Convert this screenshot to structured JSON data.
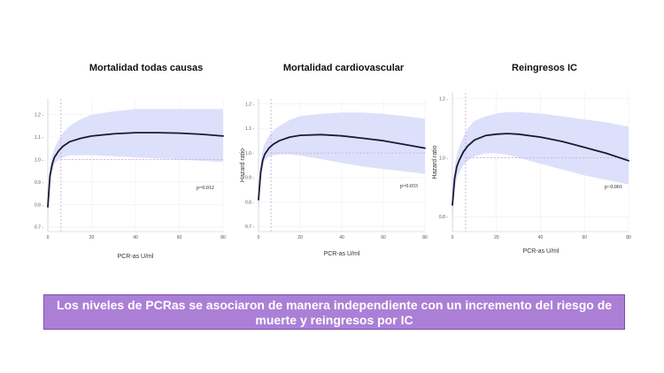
{
  "banner_text": "Los niveles de PCRas se asociaron de manera independiente con un incremento del riesgo de muerte y reingresos por IC",
  "colors": {
    "band": "#dde0fb",
    "curve": "#1a1a33",
    "reference": "#c9a3d4",
    "banner": "#ab7fd6"
  },
  "chart_data": [
    {
      "type": "line",
      "title": "Mortalidad todas causas",
      "xlabel": "PCR-as U/ml",
      "ylabel": "",
      "annotation": "p=0.012",
      "xlim": [
        0,
        80
      ],
      "ylim": [
        0.68,
        1.27
      ],
      "xticks": [
        0,
        20,
        40,
        60,
        80
      ],
      "yticks": [
        0.7,
        0.8,
        0.9,
        1.0,
        1.1,
        1.2
      ],
      "ytick_labels": [
        "0.7",
        "0.8",
        "0.9",
        "1.0",
        "1.1",
        "1.2"
      ],
      "reference_x": 6,
      "reference_y": 1.0,
      "x": [
        0,
        1,
        2,
        3,
        5,
        7,
        10,
        15,
        20,
        30,
        40,
        50,
        60,
        70,
        80
      ],
      "series": [
        {
          "values": [
            0.79,
            0.93,
            0.98,
            1.01,
            1.04,
            1.06,
            1.08,
            1.095,
            1.105,
            1.115,
            1.12,
            1.12,
            1.118,
            1.113,
            1.105
          ]
        }
      ],
      "band_lower": [
        0.72,
        0.9,
        0.95,
        0.98,
        1.0,
        1.01,
        1.02,
        1.02,
        1.02,
        1.015,
        1.01,
        1.005,
        1.0,
        0.995,
        0.99
      ],
      "band_upper": [
        0.86,
        0.97,
        1.02,
        1.05,
        1.09,
        1.12,
        1.15,
        1.18,
        1.2,
        1.215,
        1.225,
        1.225,
        1.225,
        1.225,
        1.225
      ]
    },
    {
      "type": "line",
      "title": "Mortalidad cardiovascular",
      "xlabel": "PCR-as U/ml",
      "ylabel": "Hazard ratio",
      "annotation": "p=0.033",
      "xlim": [
        0,
        80
      ],
      "ylim": [
        0.68,
        1.22
      ],
      "xticks": [
        0,
        20,
        40,
        60,
        80
      ],
      "yticks": [
        0.7,
        0.8,
        0.9,
        1.0,
        1.1,
        1.2
      ],
      "ytick_labels": [
        "0.7",
        "0.8",
        "0.9",
        "1.0",
        "1.1",
        "1.2"
      ],
      "reference_x": 6,
      "reference_y": 1.0,
      "x": [
        0,
        1,
        2,
        3,
        5,
        7,
        10,
        15,
        20,
        30,
        40,
        50,
        60,
        70,
        80
      ],
      "series": [
        {
          "values": [
            0.81,
            0.92,
            0.97,
            0.995,
            1.02,
            1.035,
            1.05,
            1.065,
            1.072,
            1.075,
            1.07,
            1.06,
            1.05,
            1.035,
            1.02
          ]
        }
      ],
      "band_lower": [
        0.75,
        0.89,
        0.94,
        0.97,
        0.985,
        0.99,
        0.995,
        0.995,
        0.99,
        0.975,
        0.96,
        0.945,
        0.935,
        0.925,
        0.915
      ],
      "band_upper": [
        0.87,
        0.96,
        1.01,
        1.04,
        1.07,
        1.09,
        1.11,
        1.135,
        1.15,
        1.16,
        1.165,
        1.165,
        1.16,
        1.15,
        1.14
      ]
    },
    {
      "type": "line",
      "title": "Reingresos IC",
      "xlabel": "PCR-as U/ml",
      "ylabel": "Hazard ratio",
      "annotation": "p<0.001",
      "xlim": [
        0,
        80
      ],
      "ylim": [
        0.75,
        1.22
      ],
      "xticks": [
        0,
        20,
        40,
        60,
        80
      ],
      "yticks": [
        0.8,
        1.0,
        1.2
      ],
      "ytick_labels": [
        "0.8",
        "1.0",
        "1.2"
      ],
      "reference_x": 6,
      "reference_y": 1.0,
      "x": [
        0,
        1,
        2,
        3,
        5,
        7,
        10,
        15,
        20,
        25,
        30,
        40,
        50,
        60,
        70,
        80
      ],
      "series": [
        {
          "values": [
            0.84,
            0.93,
            0.97,
            0.99,
            1.02,
            1.04,
            1.06,
            1.075,
            1.08,
            1.082,
            1.08,
            1.07,
            1.055,
            1.035,
            1.015,
            0.99
          ]
        }
      ],
      "band_lower": [
        0.78,
        0.89,
        0.93,
        0.95,
        0.975,
        0.99,
        1.005,
        1.015,
        1.015,
        1.01,
        1.0,
        0.98,
        0.96,
        0.94,
        0.925,
        0.91
      ],
      "band_upper": [
        0.9,
        0.97,
        1.01,
        1.035,
        1.07,
        1.1,
        1.125,
        1.14,
        1.15,
        1.155,
        1.155,
        1.15,
        1.14,
        1.13,
        1.12,
        1.105
      ]
    }
  ]
}
